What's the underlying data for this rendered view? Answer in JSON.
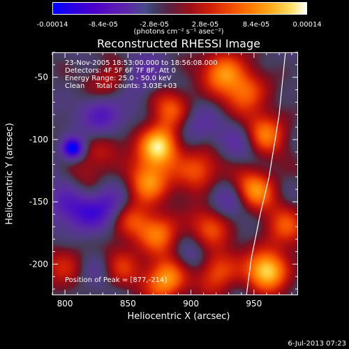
{
  "colorbar": {
    "ticks": [
      "-0.00014",
      "-8.4e-05",
      "-2.8e-05",
      "2.8e-05",
      "8.4e-05",
      "0.00014"
    ],
    "units": "(photons cm⁻² s⁻¹ asec⁻²)"
  },
  "chart_data": {
    "type": "heatmap",
    "title": "Reconstructed RHESSI Image",
    "xlabel": "Heliocentric X (arcsec)",
    "ylabel": "Heliocentric Y (arcsec)",
    "xlim": [
      790,
      985
    ],
    "ylim": [
      -225,
      -30
    ],
    "xticks": [
      800,
      850,
      900,
      950
    ],
    "yticks": [
      -50,
      -100,
      -150,
      -200
    ],
    "zlim": [
      -0.00014,
      0.00014
    ],
    "peak": [
      877,
      -214
    ],
    "sources": [
      {
        "x": 875,
        "y": -105,
        "v": 1.0
      },
      {
        "x": 925,
        "y": -45,
        "v": 0.7
      },
      {
        "x": 943,
        "y": -62,
        "v": 0.6
      },
      {
        "x": 885,
        "y": -75,
        "v": 0.55
      },
      {
        "x": 865,
        "y": -135,
        "v": 0.75
      },
      {
        "x": 905,
        "y": -125,
        "v": 0.6
      },
      {
        "x": 958,
        "y": -95,
        "v": 0.7
      },
      {
        "x": 950,
        "y": -140,
        "v": 0.75
      },
      {
        "x": 915,
        "y": -170,
        "v": 0.55
      },
      {
        "x": 875,
        "y": -175,
        "v": 0.6
      },
      {
        "x": 880,
        "y": -212,
        "v": 0.85
      },
      {
        "x": 960,
        "y": -205,
        "v": 0.95
      },
      {
        "x": 920,
        "y": -205,
        "v": 0.6
      },
      {
        "x": 842,
        "y": -200,
        "v": 0.55
      },
      {
        "x": 850,
        "y": -165,
        "v": 0.45
      },
      {
        "x": 835,
        "y": -55,
        "v": 0.4
      },
      {
        "x": 830,
        "y": -110,
        "v": 0.35
      },
      {
        "x": 800,
        "y": -200,
        "v": 0.4
      },
      {
        "x": 975,
        "y": -170,
        "v": 0.5
      },
      {
        "x": 815,
        "y": -140,
        "v": 0.3
      }
    ],
    "sinks": [
      {
        "x": 806,
        "y": -107,
        "v": -1.0
      },
      {
        "x": 830,
        "y": -80,
        "v": -0.55
      },
      {
        "x": 835,
        "y": -150,
        "v": -0.55
      },
      {
        "x": 815,
        "y": -160,
        "v": -0.45
      },
      {
        "x": 800,
        "y": -150,
        "v": -0.4
      },
      {
        "x": 900,
        "y": -90,
        "v": -0.35
      },
      {
        "x": 860,
        "y": -50,
        "v": -0.35
      },
      {
        "x": 930,
        "y": -150,
        "v": -0.35
      },
      {
        "x": 830,
        "y": -200,
        "v": -0.35
      },
      {
        "x": 900,
        "y": -195,
        "v": -0.3
      },
      {
        "x": 940,
        "y": -100,
        "v": -0.3
      }
    ],
    "limb_curve": {
      "x": [
        975,
        970,
        962,
        955,
        948,
        944
      ],
      "y": [
        -30,
        -80,
        -130,
        -160,
        -195,
        -225
      ]
    }
  },
  "annotations": {
    "line1": "23-Nov-2005 18:53:00.000 to 18:56:08.000",
    "line2": "Detectors: 4F 5F 6F 7F 8F, Att 0",
    "line3": "Energy Range: 25.0 - 50.0 keV",
    "line4": "Clean     Total counts: 3.03E+03",
    "peak_label": "Position of Peak = [877,-214]"
  },
  "footer": {
    "date": "6-Jul-2013 07:23"
  }
}
